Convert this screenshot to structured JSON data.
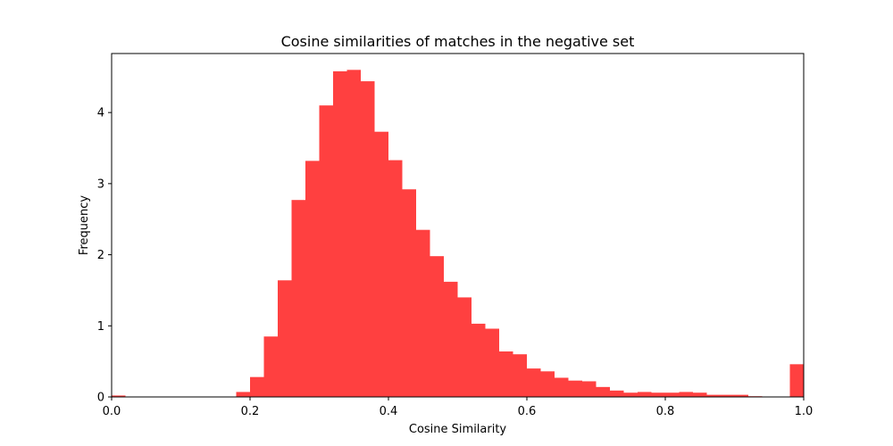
{
  "chart_data": {
    "type": "bar",
    "title": "Cosine similarities of matches in the negative set",
    "xlabel": "Cosine Similarity",
    "ylabel": "Frequency",
    "xlim": [
      0.0,
      1.0
    ],
    "ylim": [
      0,
      4.83
    ],
    "bar_color": "#ff4040",
    "bin_width": 0.02,
    "bins_start": [
      0.0,
      0.18,
      0.2,
      0.22,
      0.24,
      0.26,
      0.28,
      0.3,
      0.32,
      0.34,
      0.36,
      0.38,
      0.4,
      0.42,
      0.44,
      0.46,
      0.48,
      0.5,
      0.52,
      0.54,
      0.56,
      0.58,
      0.6,
      0.62,
      0.64,
      0.66,
      0.68,
      0.7,
      0.72,
      0.74,
      0.76,
      0.78,
      0.8,
      0.82,
      0.84,
      0.86,
      0.88,
      0.9,
      0.92,
      0.98
    ],
    "values": [
      0.02,
      0.07,
      0.28,
      0.85,
      1.64,
      2.77,
      3.32,
      4.1,
      4.58,
      4.6,
      4.44,
      3.73,
      3.33,
      2.92,
      2.35,
      1.98,
      1.62,
      1.4,
      1.03,
      0.96,
      0.64,
      0.6,
      0.4,
      0.36,
      0.27,
      0.23,
      0.22,
      0.14,
      0.09,
      0.06,
      0.07,
      0.06,
      0.06,
      0.07,
      0.06,
      0.03,
      0.03,
      0.03,
      0.01,
      0.46
    ],
    "x_ticks": [
      0.0,
      0.2,
      0.4,
      0.6,
      0.8,
      1.0
    ],
    "x_tick_labels": [
      "0.0",
      "0.2",
      "0.4",
      "0.6",
      "0.8",
      "1.0"
    ],
    "y_ticks": [
      0,
      1,
      2,
      3,
      4
    ],
    "y_tick_labels": [
      "0",
      "1",
      "2",
      "3",
      "4"
    ],
    "grid": false,
    "legend": "none"
  }
}
